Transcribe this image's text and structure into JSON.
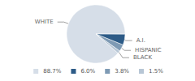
{
  "chart_data": {
    "type": "pie",
    "categories": [
      "WHITE",
      "A.I.",
      "HISPANIC",
      "BLACK"
    ],
    "values": [
      88.7,
      6.0,
      3.8,
      1.5
    ],
    "value_labels": [
      "88.7%",
      "6.0%",
      "3.8%",
      "1.5%"
    ],
    "colors": [
      "#d6dee8",
      "#2d5b87",
      "#7e9ab4",
      "#b7c6d5"
    ],
    "legend": "bottom"
  }
}
